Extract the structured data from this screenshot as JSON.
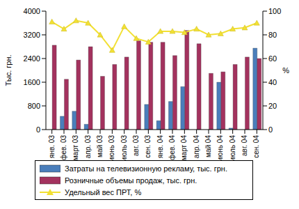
{
  "chart_data": {
    "type": "bar",
    "categories": [
      "янв. 03",
      "фев. 03",
      "март 03",
      "апр. 03",
      "май 03",
      "июнь 03",
      "июль 03",
      "авг. 03",
      "сен. 03",
      "янв. 04",
      "фев. 04",
      "март 04",
      "апр. 04",
      "май 04",
      "июнь 04",
      "июль 04",
      "авг. 04",
      "сен. 04"
    ],
    "series": [
      {
        "name": "Затраты на телевизионную рекламу, тыс. грн.",
        "type": "bar",
        "color": "#4a7ebb",
        "values": [
          0,
          450,
          620,
          180,
          0,
          0,
          0,
          0,
          850,
          300,
          950,
          1450,
          0,
          0,
          1600,
          50,
          0,
          2750
        ]
      },
      {
        "name": "Розничные объемы продаж, тыс. грн.",
        "type": "bar",
        "color": "#a3325e",
        "values": [
          2850,
          1700,
          2350,
          2800,
          1800,
          2200,
          2450,
          3000,
          2950,
          2950,
          2500,
          3350,
          2900,
          1900,
          1950,
          2200,
          2450,
          2400
        ]
      },
      {
        "name": "Удельный вес ПРТ, %",
        "type": "line",
        "axis": "y2",
        "color": "#f2e034",
        "marker": "triangle",
        "values": [
          91,
          85,
          92,
          90,
          80,
          67,
          87,
          77,
          74,
          83,
          83,
          82,
          85,
          80,
          81,
          85,
          86,
          90
        ]
      }
    ],
    "y_label": "Тыс. грн.",
    "y2_label": "%",
    "ylim": [
      0,
      4000
    ],
    "yticks": [
      0,
      800,
      1600,
      2400,
      3200,
      4000
    ],
    "y2lim": [
      0,
      100
    ],
    "y2ticks": [
      0,
      20,
      40,
      60,
      80,
      100
    ],
    "grid": false,
    "legend": "bottom"
  }
}
